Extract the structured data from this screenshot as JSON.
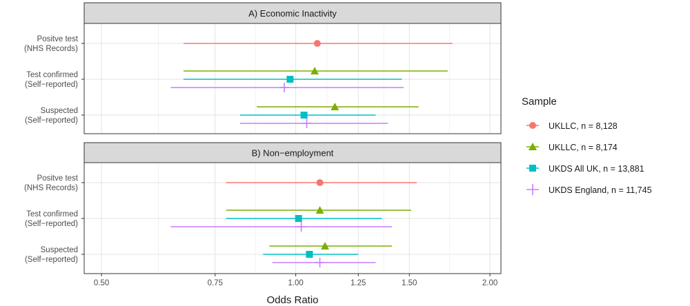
{
  "chart_data": {
    "type": "forest",
    "xlabel": "Odds Ratio",
    "x_scale": "log",
    "xlim": [
      0.47,
      2.08
    ],
    "x_ticks": [
      0.5,
      0.75,
      1.0,
      1.25,
      1.5,
      2.0
    ],
    "x_tick_labels": [
      "0.50",
      "0.75",
      "1.00",
      "1.25",
      "1.50",
      "2.00"
    ],
    "categories": [
      [
        "Positve test",
        "(NHS Records)"
      ],
      [
        "Test confirmed",
        "(Self−reported)"
      ],
      [
        "Suspected",
        "(Self−reported)"
      ]
    ],
    "legend_title": "Sample",
    "series": [
      {
        "name": "UKLLC, n = 8,128",
        "color": "#F8766D",
        "shape": "circle"
      },
      {
        "name": "UKLLC, n = 8,174",
        "color": "#7CAE00",
        "shape": "triangle"
      },
      {
        "name": "UKDS All UK, n = 13,881",
        "color": "#00BFC4",
        "shape": "square"
      },
      {
        "name": "UKDS England, n = 11,745",
        "color": "#C77CFF",
        "shape": "plus"
      }
    ],
    "panels": [
      {
        "title": "A) Economic Inactivity",
        "rows": [
          {
            "category": 0,
            "points": [
              {
                "series": 0,
                "or": 1.08,
                "lo": 0.67,
                "hi": 1.75
              }
            ]
          },
          {
            "category": 1,
            "points": [
              {
                "series": 1,
                "or": 1.07,
                "lo": 0.67,
                "hi": 1.72
              },
              {
                "series": 2,
                "or": 0.98,
                "lo": 0.67,
                "hi": 1.46
              },
              {
                "series": 3,
                "or": 0.96,
                "lo": 0.64,
                "hi": 1.47
              }
            ]
          },
          {
            "category": 2,
            "points": [
              {
                "series": 1,
                "or": 1.15,
                "lo": 0.87,
                "hi": 1.55
              },
              {
                "series": 2,
                "or": 1.03,
                "lo": 0.82,
                "hi": 1.33
              },
              {
                "series": 3,
                "or": 1.04,
                "lo": 0.82,
                "hi": 1.39
              }
            ]
          }
        ]
      },
      {
        "title": "B) Non−employment",
        "rows": [
          {
            "category": 0,
            "points": [
              {
                "series": 0,
                "or": 1.09,
                "lo": 0.78,
                "hi": 1.54
              }
            ]
          },
          {
            "category": 1,
            "points": [
              {
                "series": 1,
                "or": 1.09,
                "lo": 0.78,
                "hi": 1.51
              },
              {
                "series": 2,
                "or": 1.01,
                "lo": 0.78,
                "hi": 1.36
              },
              {
                "series": 3,
                "or": 1.02,
                "lo": 0.64,
                "hi": 1.41
              }
            ]
          },
          {
            "category": 2,
            "points": [
              {
                "series": 1,
                "or": 1.11,
                "lo": 0.91,
                "hi": 1.41
              },
              {
                "series": 2,
                "or": 1.05,
                "lo": 0.89,
                "hi": 1.25
              },
              {
                "series": 3,
                "or": 1.09,
                "lo": 0.92,
                "hi": 1.33
              }
            ]
          }
        ]
      }
    ]
  }
}
